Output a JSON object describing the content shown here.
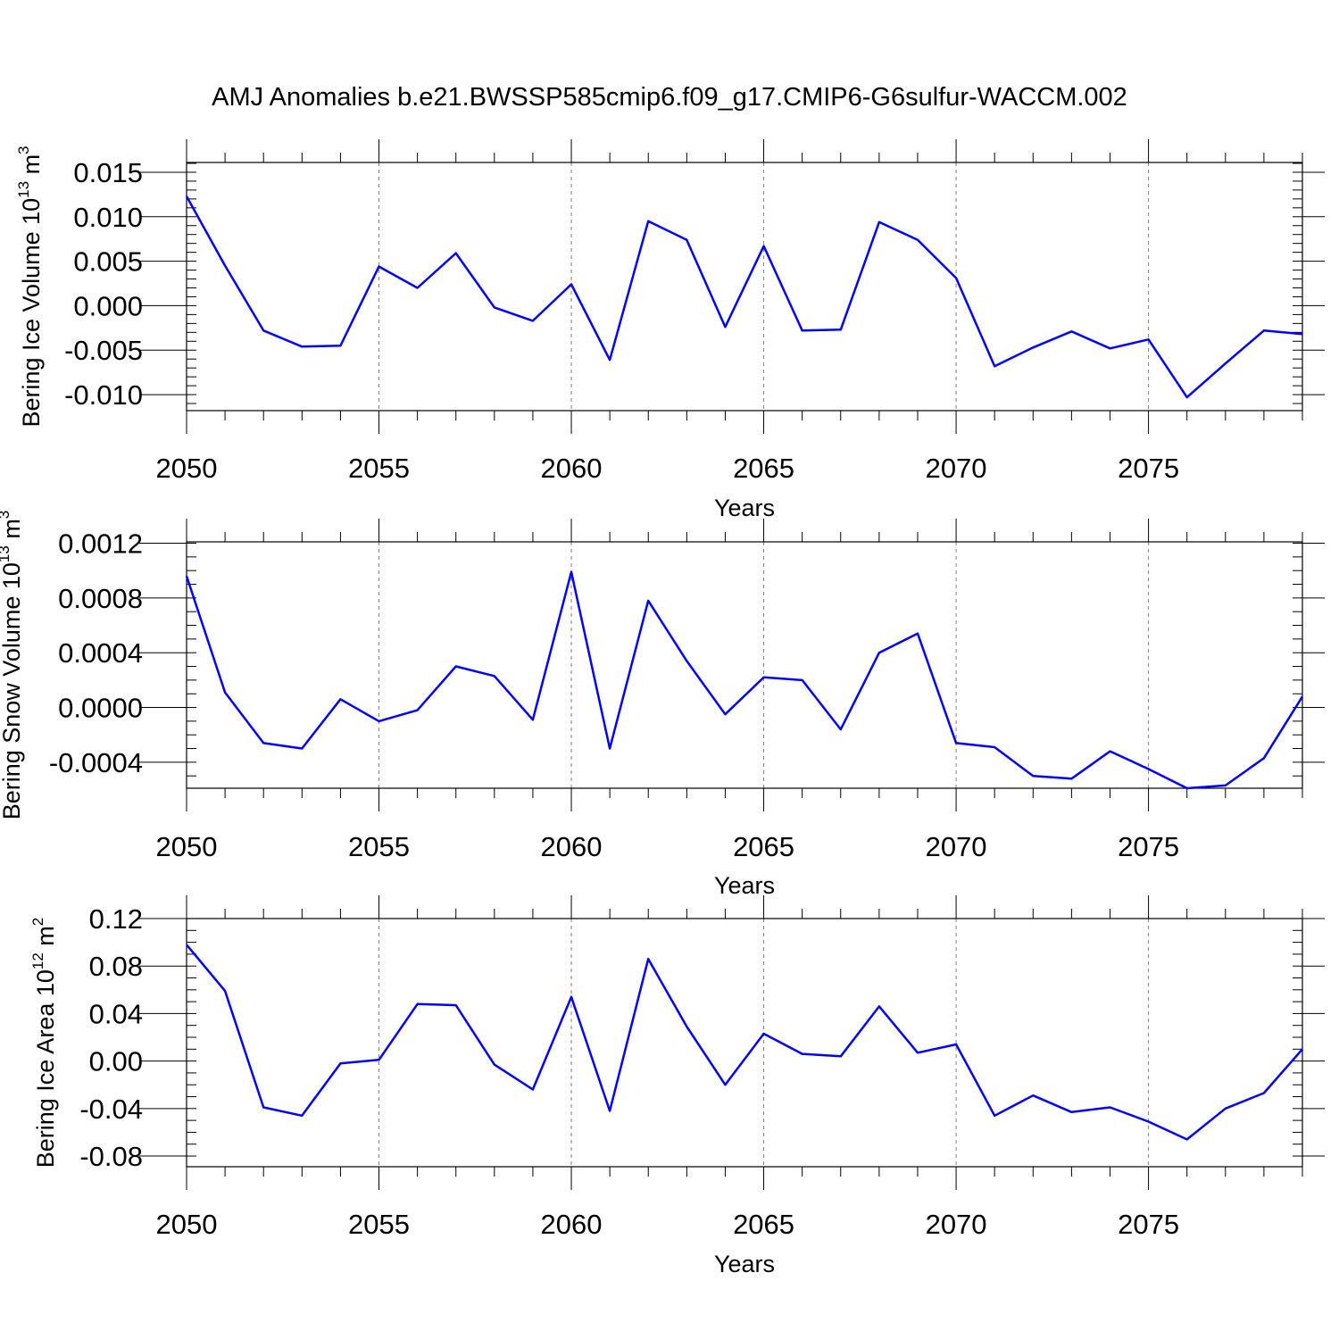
{
  "title": "AMJ Anomalies b.e21.BWSSP585cmip6.f09_g17.CMIP6-G6sulfur-WACCM.002",
  "colors": {
    "line": "#0000ff",
    "grid": "#808080",
    "axis": "#000000"
  },
  "chart_data": [
    {
      "type": "line",
      "ylabel_main": "Bering Ice Volume 10",
      "ylabel_exp": "13",
      "ylabel_unit": " m",
      "ylabel_unit_exp": "3",
      "xlabel": "Years",
      "xlim": [
        2050,
        2079
      ],
      "ylim": [
        -0.0118,
        0.0161
      ],
      "y_ticks": [
        0.015,
        0.01,
        0.005,
        0.0,
        -0.005,
        -0.01
      ],
      "y_tick_labels": [
        "0.015",
        "0.010",
        "0.005",
        "0.000",
        "-0.005",
        "-0.010"
      ],
      "y_minor_step": 0.001,
      "x_ticks": [
        2050,
        2055,
        2060,
        2065,
        2070,
        2075
      ],
      "x_tick_labels": [
        "2050",
        "2055",
        "2060",
        "2065",
        "2070",
        "2075"
      ],
      "x": [
        2050,
        2051,
        2052,
        2053,
        2054,
        2055,
        2056,
        2057,
        2058,
        2059,
        2060,
        2061,
        2062,
        2063,
        2064,
        2065,
        2066,
        2067,
        2068,
        2069,
        2070,
        2071,
        2072,
        2073,
        2074,
        2075,
        2076,
        2077,
        2078,
        2079
      ],
      "series": [
        {
          "name": "Bering Ice Volume",
          "values": [
            0.0123,
            0.0045,
            -0.0028,
            -0.0046,
            -0.0045,
            0.0044,
            0.002,
            0.0059,
            -0.0002,
            -0.0017,
            0.0024,
            -0.0061,
            0.0095,
            0.0074,
            -0.0024,
            0.0067,
            -0.0028,
            -0.0027,
            0.0094,
            0.0074,
            0.0031,
            -0.0068,
            -0.0047,
            -0.0029,
            -0.0048,
            -0.0038,
            -0.0103,
            -0.0065,
            -0.0028,
            -0.0032
          ]
        }
      ]
    },
    {
      "type": "line",
      "ylabel_main": "Bering Snow Volume 10",
      "ylabel_exp": "13",
      "ylabel_unit": " m",
      "ylabel_unit_exp": "3",
      "xlabel": "Years",
      "xlim": [
        2050,
        2079
      ],
      "ylim": [
        -0.00059,
        0.00121
      ],
      "y_ticks": [
        0.0012,
        0.0008,
        0.0004,
        0.0,
        -0.0004
      ],
      "y_tick_labels": [
        "0.0012",
        "0.0008",
        "0.0004",
        "0.0000",
        "-0.0004"
      ],
      "y_minor_step": 0.0001,
      "x_ticks": [
        2050,
        2055,
        2060,
        2065,
        2070,
        2075
      ],
      "x_tick_labels": [
        "2050",
        "2055",
        "2060",
        "2065",
        "2070",
        "2075"
      ],
      "x": [
        2050,
        2051,
        2052,
        2053,
        2054,
        2055,
        2056,
        2057,
        2058,
        2059,
        2060,
        2061,
        2062,
        2063,
        2064,
        2065,
        2066,
        2067,
        2068,
        2069,
        2070,
        2071,
        2072,
        2073,
        2074,
        2075,
        2076,
        2077,
        2078,
        2079
      ],
      "series": [
        {
          "name": "Bering Snow Volume",
          "values": [
            0.00096,
            0.00011,
            -0.00026,
            -0.0003,
            6e-05,
            -0.0001,
            -2e-05,
            0.0003,
            0.00023,
            -9e-05,
            0.00099,
            -0.0003,
            0.00078,
            0.00034,
            -5e-05,
            0.00022,
            0.0002,
            -0.00016,
            0.0004,
            0.00054,
            -0.00026,
            -0.00029,
            -0.0005,
            -0.00052,
            -0.00032,
            -0.00045,
            -0.00059,
            -0.00057,
            -0.00037,
            8e-05
          ]
        }
      ]
    },
    {
      "type": "line",
      "ylabel_main": "Bering Ice Area 10",
      "ylabel_exp": "12",
      "ylabel_unit": " m",
      "ylabel_unit_exp": "2",
      "xlabel": "Years",
      "xlim": [
        2050,
        2079
      ],
      "ylim": [
        -0.089,
        0.12
      ],
      "y_ticks": [
        0.12,
        0.08,
        0.04,
        0.0,
        -0.04,
        -0.08
      ],
      "y_tick_labels": [
        "0.12",
        "0.08",
        "0.04",
        "0.00",
        "-0.04",
        "-0.08"
      ],
      "y_minor_step": 0.01,
      "x_ticks": [
        2050,
        2055,
        2060,
        2065,
        2070,
        2075
      ],
      "x_tick_labels": [
        "2050",
        "2055",
        "2060",
        "2065",
        "2070",
        "2075"
      ],
      "x": [
        2050,
        2051,
        2052,
        2053,
        2054,
        2055,
        2056,
        2057,
        2058,
        2059,
        2060,
        2061,
        2062,
        2063,
        2064,
        2065,
        2066,
        2067,
        2068,
        2069,
        2070,
        2071,
        2072,
        2073,
        2074,
        2075,
        2076,
        2077,
        2078,
        2079
      ],
      "series": [
        {
          "name": "Bering Ice Area",
          "values": [
            0.098,
            0.059,
            -0.039,
            -0.046,
            -0.002,
            0.001,
            0.048,
            0.047,
            -0.003,
            -0.024,
            0.054,
            -0.042,
            0.086,
            0.029,
            -0.02,
            0.023,
            0.006,
            0.004,
            0.046,
            0.007,
            0.014,
            -0.046,
            -0.029,
            -0.043,
            -0.039,
            -0.051,
            -0.066,
            -0.04,
            -0.027,
            0.01
          ]
        }
      ]
    }
  ]
}
